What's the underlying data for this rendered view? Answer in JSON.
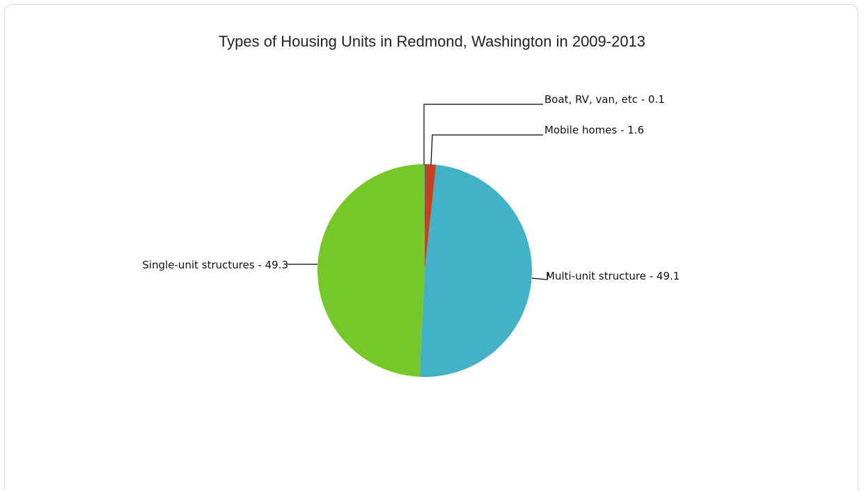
{
  "chart_data": {
    "type": "pie",
    "title": "Types of Housing Units in Redmond, Washington in 2009-2013",
    "slices": [
      {
        "label": "Boat, RV, van, etc - 0.1",
        "name": "Boat, RV, van, etc",
        "value": 0.1,
        "color": "#1f5fa8"
      },
      {
        "label": "Mobile homes - 1.6",
        "name": "Mobile homes",
        "value": 1.6,
        "color": "#c8411c"
      },
      {
        "label": "Multi-unit structure - 49.1",
        "name": "Multi-unit structure",
        "value": 49.1,
        "color": "#43b2c8"
      },
      {
        "label": "Single-unit structures - 49.3",
        "name": "Single-unit structures",
        "value": 49.3,
        "color": "#76c82a"
      }
    ]
  }
}
